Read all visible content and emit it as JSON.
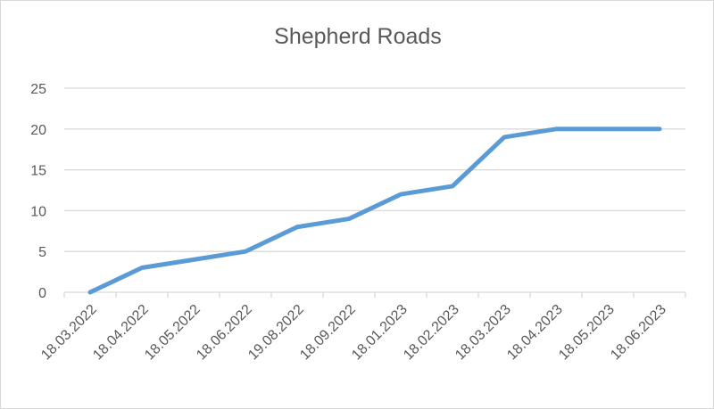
{
  "chart_data": {
    "type": "line",
    "title": "Shepherd Roads",
    "xlabel": "",
    "ylabel": "",
    "categories": [
      "18.03.2022",
      "18.04.2022",
      "18.05.2022",
      "18.06.2022",
      "19.08.2022",
      "18.09.2022",
      "18.01.2023",
      "18.02.2023",
      "18.03.2023",
      "18.04.2023",
      "18.05.2023",
      "18.06.2023"
    ],
    "series": [
      {
        "values": [
          0,
          3,
          4,
          5,
          8,
          9,
          12,
          13,
          19,
          20,
          20,
          20
        ],
        "color": "#5b9bd5"
      }
    ],
    "ylim": [
      0,
      25
    ],
    "yticks": [
      0,
      5,
      10,
      15,
      20,
      25
    ],
    "grid": true,
    "legend": "none"
  }
}
